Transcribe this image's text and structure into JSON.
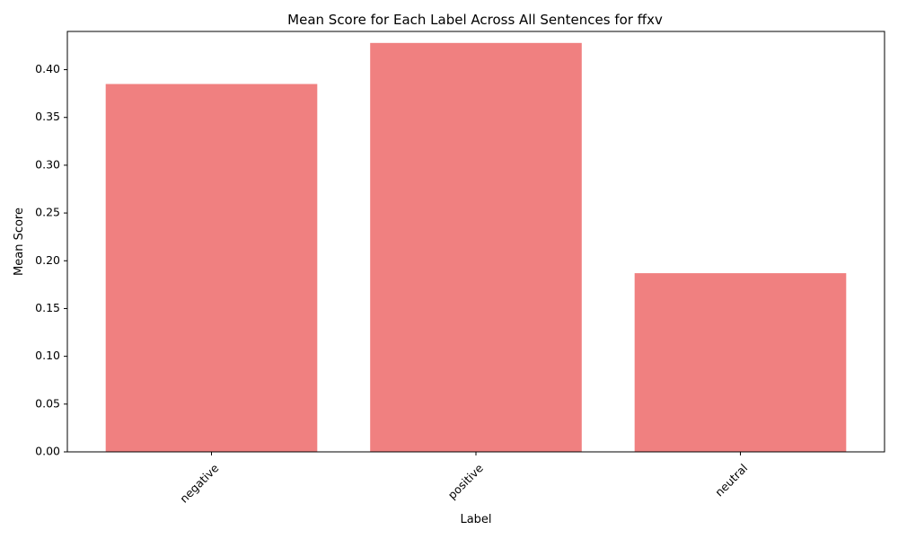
{
  "chart_data": {
    "type": "bar",
    "title": "Mean Score for Each Label Across All Sentences for ffxv",
    "xlabel": "Label",
    "ylabel": "Mean Score",
    "categories": [
      "negative",
      "positive",
      "neutral"
    ],
    "values": [
      0.385,
      0.428,
      0.187
    ],
    "ylim": [
      0,
      0.44
    ],
    "yticks": [
      0.0,
      0.05,
      0.1,
      0.15,
      0.2,
      0.25,
      0.3,
      0.35,
      0.4
    ],
    "ytick_labels": [
      "0.00",
      "0.05",
      "0.10",
      "0.15",
      "0.20",
      "0.25",
      "0.30",
      "0.35",
      "0.40"
    ],
    "bar_color": "#f08080",
    "grid": false,
    "xtick_rotation": 45
  }
}
